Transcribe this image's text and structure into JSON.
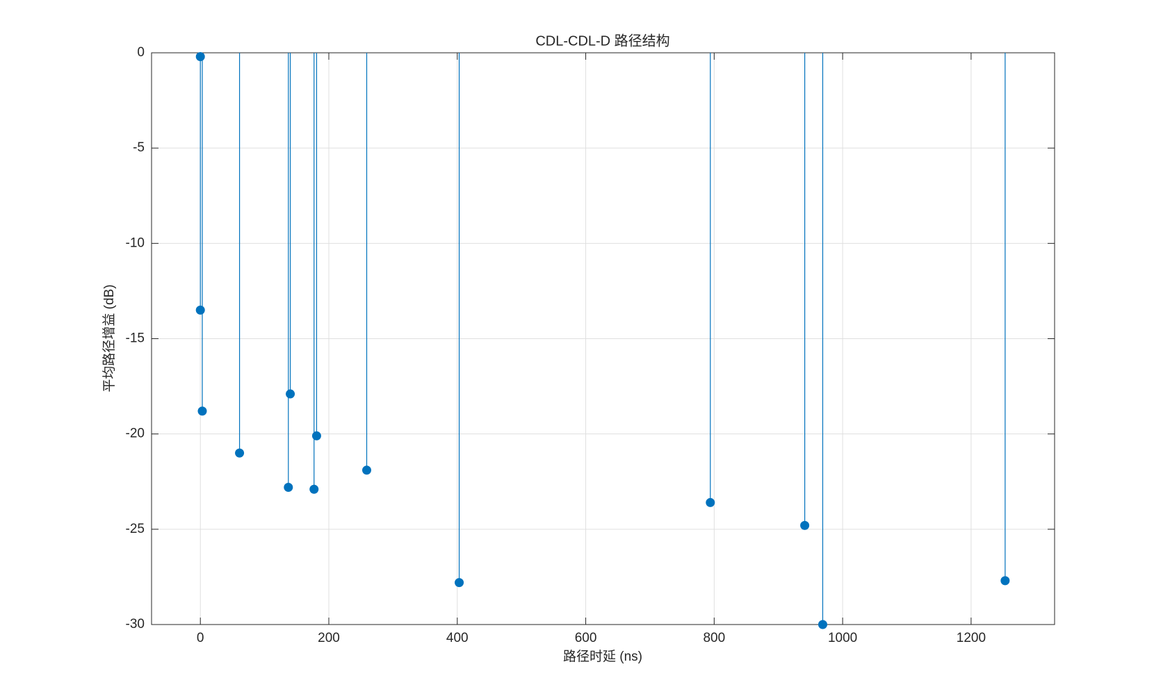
{
  "chart_data": {
    "type": "stem",
    "title": "CDL-CDL-D 路径结构",
    "x_label": "路径时延 (ns)",
    "y_label": "平均路径增益 (dB)",
    "x": [
      0,
      0,
      3,
      61,
      137,
      140,
      177,
      181,
      259,
      403,
      794,
      941,
      969,
      1253
    ],
    "values": [
      -0.2,
      -13.5,
      -18.8,
      -21,
      -22.8,
      -17.9,
      -22.9,
      -20.1,
      -21.9,
      -27.8,
      -23.6,
      -24.8,
      -30,
      -27.7
    ],
    "color": "#0072bd",
    "xlim": [
      -76,
      1330
    ],
    "xticks": [
      0,
      200,
      400,
      600,
      800,
      1000,
      1200
    ],
    "ylim": [
      -30,
      0
    ],
    "yticks": [
      -30,
      -25,
      -20,
      -15,
      -10,
      -5,
      0
    ],
    "grid": true
  }
}
